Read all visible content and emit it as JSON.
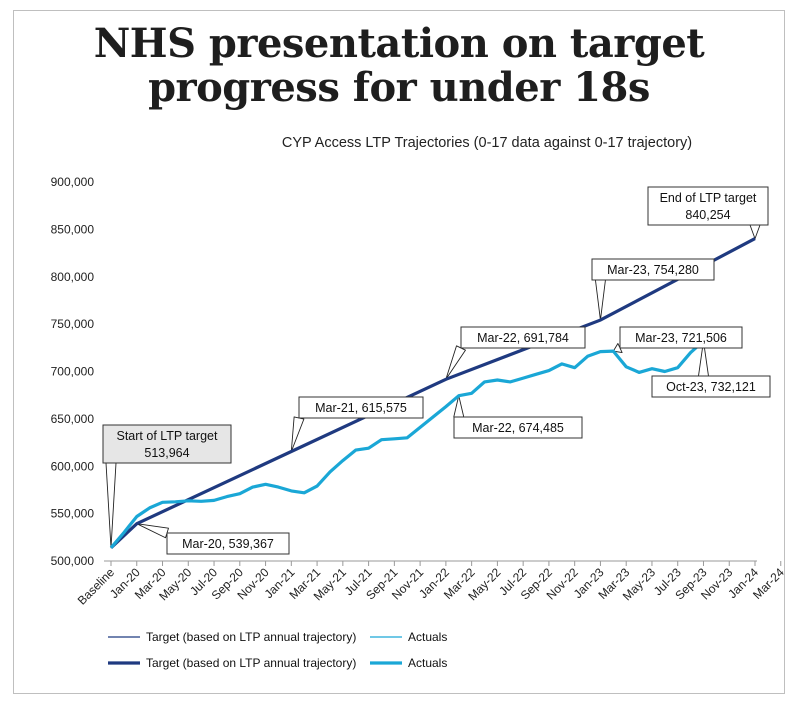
{
  "headline": "NHS presentation on target progress for under 18s",
  "chart_data": {
    "type": "line",
    "title": "CYP Access LTP Trajectories (0-17 data against 0-17 trajectory)",
    "xlabel": "",
    "ylabel": "",
    "ylim": [
      500000,
      900000
    ],
    "y_ticks": [
      500000,
      550000,
      600000,
      650000,
      700000,
      750000,
      800000,
      850000,
      900000
    ],
    "y_tick_labels": [
      "500,000",
      "550,000",
      "600,000",
      "650,000",
      "700,000",
      "750,000",
      "800,000",
      "850,000",
      "900,000"
    ],
    "x_tick_labels": [
      "Baseline",
      "Jan-20",
      "Mar-20",
      "May-20",
      "Jul-20",
      "Sep-20",
      "Nov-20",
      "Jan-21",
      "Mar-21",
      "May-21",
      "Jul-21",
      "Sep-21",
      "Nov-21",
      "Jan-22",
      "Mar-22",
      "May-22",
      "Jul-22",
      "Sep-22",
      "Nov-22",
      "Jan-23",
      "Mar-23",
      "May-23",
      "Jul-23",
      "Sep-23",
      "Nov-23",
      "Jan-24",
      "Mar-24"
    ],
    "series": [
      {
        "name": "Target (based on LTP annual trajectory)",
        "color": "#1f3a80",
        "points": [
          [
            0,
            513964
          ],
          [
            2,
            539367
          ],
          [
            14,
            615575
          ],
          [
            26,
            691784
          ],
          [
            38,
            754280
          ],
          [
            50,
            840254
          ]
        ]
      },
      {
        "name": "Actuals",
        "color": "#1aa7d6",
        "values": [
          513964,
          530000,
          547000,
          556000,
          562000,
          562500,
          563500,
          563000,
          564000,
          568000,
          571000,
          578000,
          581000,
          578000,
          574000,
          572000,
          579000,
          594000,
          606000,
          617000,
          619000,
          628000,
          629000,
          630000,
          641000,
          652000,
          663000,
          674485,
          677000,
          689000,
          691000,
          689000,
          693000,
          697000,
          701000,
          708000,
          704000,
          716000,
          721000,
          721506,
          705000,
          699000,
          703000,
          700000,
          704000,
          720000,
          732121
        ]
      }
    ],
    "annotations": [
      {
        "label": "Start of LTP target",
        "value": "513,964"
      },
      {
        "label": "Mar-20,",
        "value": "539,367"
      },
      {
        "label": "Mar-21,",
        "value": "615,575"
      },
      {
        "label": "Mar-22,",
        "value": "691,784"
      },
      {
        "label": "Mar-22,",
        "value": "674,485"
      },
      {
        "label": "Mar-23,",
        "value": "754,280"
      },
      {
        "label": "Mar-23,",
        "value": "721,506"
      },
      {
        "label": "Oct-23,",
        "value": "732,121"
      },
      {
        "label": "End of LTP target",
        "value": "840,254"
      }
    ],
    "legend": [
      {
        "name": "Target (based on LTP annual trajectory)",
        "style": "thin"
      },
      {
        "name": "Actuals",
        "style": "thin"
      },
      {
        "name": "Target (based on LTP annual trajectory)",
        "style": "thick"
      },
      {
        "name": "Actuals",
        "style": "thick"
      }
    ]
  }
}
